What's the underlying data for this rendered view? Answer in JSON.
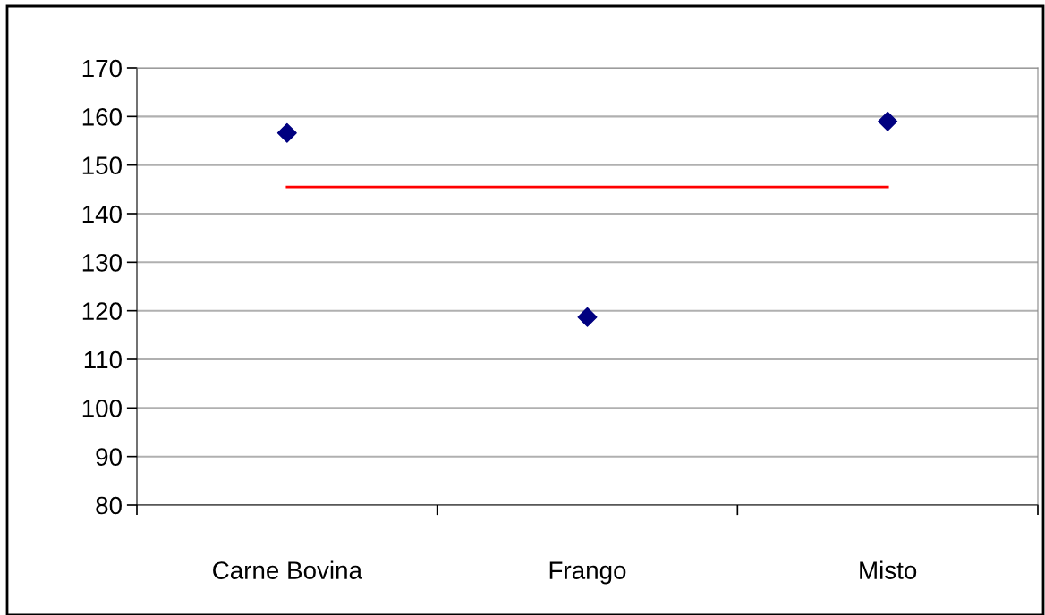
{
  "chart_data": {
    "type": "scatter",
    "categories": [
      "Carne Bovina",
      "Frango",
      "Misto"
    ],
    "series": [
      {
        "color": "#000080",
        "marker": "diamond",
        "values": [
          156.6,
          118.7,
          159.0
        ]
      },
      {
        "type": "line",
        "color": "#ff0000",
        "marker": "none",
        "line_style": "solid",
        "values": [
          145.5,
          145.5,
          145.5
        ]
      }
    ],
    "ylim": [
      80,
      170
    ],
    "yticks": [
      80,
      90,
      100,
      110,
      120,
      130,
      140,
      150,
      160,
      170
    ],
    "grid": "y",
    "legend": false
  }
}
